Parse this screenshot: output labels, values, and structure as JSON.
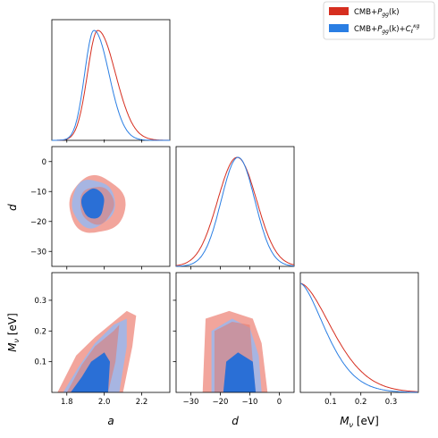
{
  "legend": {
    "entries": [
      {
        "label": "CMB+P_gg(k)",
        "color": "#d62e1f"
      },
      {
        "label": "CMB+P_gg(k)+C_ℓ^κg",
        "color": "#2a7ee3"
      }
    ]
  },
  "chart_data": {
    "type": "corner",
    "parameters": [
      {
        "name": "a",
        "label": "a",
        "range": [
          1.72,
          2.35
        ],
        "ticks": [
          1.8,
          2.0,
          2.2
        ],
        "tick_labels": [
          "1.8",
          "2.0",
          "2.2"
        ]
      },
      {
        "name": "d",
        "label": "d",
        "range": [
          -35,
          5
        ],
        "ticks": [
          -30,
          -20,
          -10,
          0
        ],
        "tick_labels": [
          "−30",
          "−20",
          "−10",
          "0"
        ]
      },
      {
        "name": "M_nu",
        "label": "M_ν [eV]",
        "range": [
          0.0,
          0.39
        ],
        "ticks": [
          0.1,
          0.2,
          0.3
        ],
        "tick_labels": [
          "0.1",
          "0.2",
          "0.3"
        ]
      }
    ],
    "axis_labels": {
      "a": "a",
      "d": "d",
      "M_nu": "M_ν [eV]"
    },
    "series": [
      {
        "name": "CMB+P_gg(k)",
        "color": "#d62e1f",
        "fill_outer": "#f2a59c",
        "fill_inner": "#e3786c",
        "a_pdf": {
          "mean": 1.965,
          "sigma_left": 0.055,
          "sigma_right": 0.095
        },
        "d_pdf": {
          "mean": -14.3,
          "sigma": 6.6
        },
        "Mnu_pdf": {
          "peak_at": 0.0,
          "scale": 0.15,
          "power": 1.7
        },
        "contour_a_d": {
          "center": [
            1.96,
            -14.5
          ],
          "inner_half_width": [
            0.09,
            6.3
          ],
          "outer_half_width": [
            0.15,
            9.5
          ]
        },
        "contour_a_Mnu": {
          "inner_upper": [
            [
              1.8,
              0.0
            ],
            [
              1.88,
              0.09
            ],
            [
              1.95,
              0.15
            ],
            [
              2.05,
              0.2
            ],
            [
              2.08,
              0.22
            ],
            [
              2.06,
              0.1
            ],
            [
              2.02,
              0.0
            ]
          ],
          "outer_upper": [
            [
              1.75,
              0.0
            ],
            [
              1.85,
              0.12
            ],
            [
              1.95,
              0.18
            ],
            [
              2.05,
              0.23
            ],
            [
              2.12,
              0.265
            ],
            [
              2.17,
              0.25
            ],
            [
              2.15,
              0.15
            ],
            [
              2.1,
              0.0
            ]
          ]
        },
        "contour_d_Mnu": {
          "inner_upper": [
            [
              -22,
              0.0
            ],
            [
              -22,
              0.2
            ],
            [
              -16,
              0.23
            ],
            [
              -10,
              0.22
            ],
            [
              -9,
              0.1
            ],
            [
              -8,
              0.0
            ]
          ],
          "outer_upper": [
            [
              -26,
              0.0
            ],
            [
              -25,
              0.24
            ],
            [
              -17,
              0.265
            ],
            [
              -9,
              0.24
            ],
            [
              -6,
              0.16
            ],
            [
              -4,
              0.0
            ]
          ]
        }
      },
      {
        "name": "CMB+P_gg(k)+C_ℓ^κg",
        "color": "#2a7ee3",
        "fill_outer": "#9fb7ea",
        "fill_inner": "#2a6fd6",
        "a_pdf": {
          "mean": 1.945,
          "sigma_left": 0.05,
          "sigma_right": 0.08
        },
        "d_pdf": {
          "mean": -14.0,
          "sigma": 5.7
        },
        "Mnu_pdf": {
          "peak_at": 0.0,
          "scale": 0.12,
          "power": 1.6
        },
        "contour_a_d": {
          "center": [
            1.94,
            -14.0
          ],
          "inner_half_width": [
            0.06,
            5.0
          ],
          "outer_half_width": [
            0.115,
            8.0
          ]
        },
        "contour_a_Mnu": {
          "inner_upper": [
            [
              1.82,
              0.0
            ],
            [
              1.88,
              0.05
            ],
            [
              1.93,
              0.1
            ],
            [
              2.0,
              0.13
            ],
            [
              2.03,
              0.1
            ],
            [
              2.02,
              0.0
            ]
          ],
          "outer_upper": [
            [
              1.78,
              0.0
            ],
            [
              1.86,
              0.08
            ],
            [
              1.95,
              0.16
            ],
            [
              2.05,
              0.22
            ],
            [
              2.12,
              0.24
            ],
            [
              2.12,
              0.15
            ],
            [
              2.08,
              0.0
            ]
          ]
        },
        "contour_d_Mnu": {
          "inner_upper": [
            [
              -19,
              0.0
            ],
            [
              -18,
              0.1
            ],
            [
              -14,
              0.13
            ],
            [
              -9,
              0.1
            ],
            [
              -8,
              0.0
            ]
          ],
          "outer_upper": [
            [
              -23,
              0.0
            ],
            [
              -23,
              0.2
            ],
            [
              -16,
              0.24
            ],
            [
              -10,
              0.21
            ],
            [
              -7,
              0.12
            ],
            [
              -6,
              0.0
            ]
          ]
        }
      }
    ],
    "grid": false,
    "legend_position": "top-right"
  }
}
